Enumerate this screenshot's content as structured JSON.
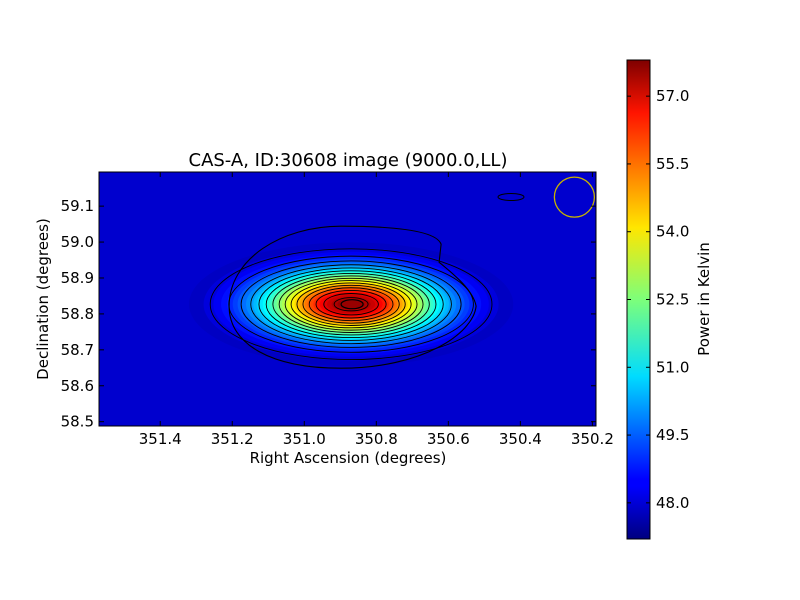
{
  "chart_data": {
    "type": "heatmap",
    "title": "CAS-A, ID:30608 image (9000.0,LL)",
    "xlabel": "Right Ascension (degrees)",
    "ylabel": "Declination (degrees)",
    "xlim": [
      351.57,
      350.19
    ],
    "ylim": [
      58.488,
      59.195
    ],
    "x_ticks": [
      {
        "value": 351.4,
        "label": "351.4"
      },
      {
        "value": 351.2,
        "label": "351.2"
      },
      {
        "value": 351.0,
        "label": "351.0"
      },
      {
        "value": 350.8,
        "label": "350.8"
      },
      {
        "value": 350.6,
        "label": "350.6"
      },
      {
        "value": 350.4,
        "label": "350.4"
      },
      {
        "value": 350.2,
        "label": "350.2"
      }
    ],
    "y_ticks": [
      {
        "value": 58.5,
        "label": "58.5"
      },
      {
        "value": 58.6,
        "label": "58.6"
      },
      {
        "value": 58.7,
        "label": "58.7"
      },
      {
        "value": 58.8,
        "label": "58.8"
      },
      {
        "value": 58.9,
        "label": "58.9"
      },
      {
        "value": 59.0,
        "label": "59.0"
      },
      {
        "value": 59.1,
        "label": "59.1"
      }
    ],
    "colorbar": {
      "label": "Power in Kelvin",
      "min": 47.2,
      "max": 57.8,
      "colormap": "jet",
      "ticks": [
        {
          "value": 48.0,
          "label": "48.0"
        },
        {
          "value": 49.5,
          "label": "49.5"
        },
        {
          "value": 51.0,
          "label": "51.0"
        },
        {
          "value": 52.5,
          "label": "52.5"
        },
        {
          "value": 54.0,
          "label": "54.0"
        },
        {
          "value": 55.5,
          "label": "55.5"
        },
        {
          "value": 57.0,
          "label": "57.0"
        }
      ]
    },
    "source": {
      "name": "CAS-A",
      "peak_ra": 350.87,
      "peak_dec": 58.827,
      "peak_value": 57.8,
      "background": 47.6,
      "sigma_ra": 0.17,
      "sigma_dec": 0.065
    },
    "contour_count": 16,
    "beam_marker": {
      "ra": 350.25,
      "dec": 59.125,
      "color": "#c8b400"
    },
    "grid": false
  }
}
